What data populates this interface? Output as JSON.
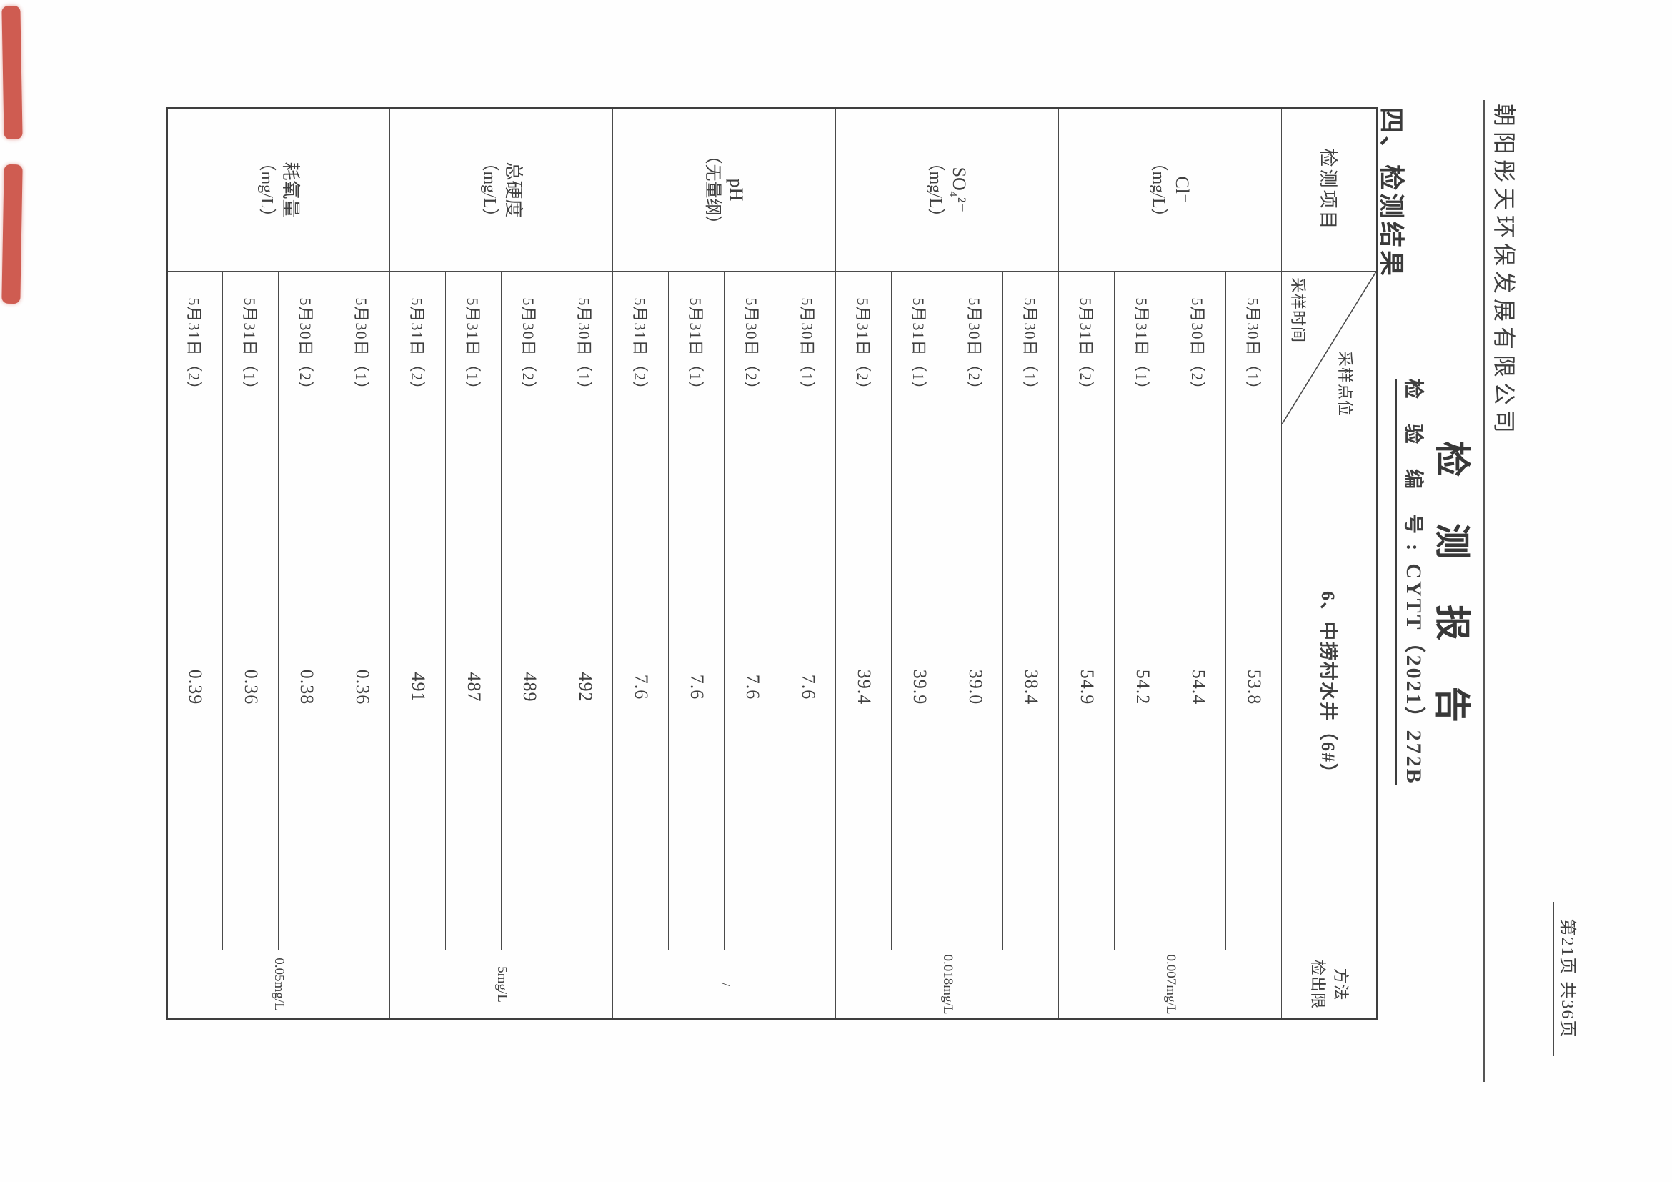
{
  "document": {
    "page_info": "第21页 共36页",
    "company_name": "朝阳彤天环保发展有限公司",
    "report_title": "检 测 报 告",
    "report_no_label": "检 验 编 号:",
    "report_no_value": "CYTT（2021）272B",
    "section_heading": "四、检测结果"
  },
  "table": {
    "header": {
      "item_col": "检测项目",
      "corner_top_right": "采样点位",
      "corner_bottom_left": "采样时间",
      "sampling_point": "6、中捞村水井（6#）",
      "limit_col_line1": "方法",
      "limit_col_line2": "检出限"
    },
    "sampling_times": [
      "5月30日（1）",
      "5月30日（2）",
      "5月31日（1）",
      "5月31日（2）"
    ],
    "items": [
      {
        "name": "Cl⁻",
        "unit": "（mg/L）",
        "values": [
          "53.8",
          "54.4",
          "54.2",
          "54.9"
        ],
        "detection_limit": "0.007mg/L"
      },
      {
        "name": "SO₄²⁻",
        "unit": "（mg/L）",
        "values": [
          "38.4",
          "39.0",
          "39.9",
          "39.4"
        ],
        "detection_limit": "0.018mg/L"
      },
      {
        "name": "pH",
        "unit": "（无量纲）",
        "values": [
          "7.6",
          "7.6",
          "7.6",
          "7.6"
        ],
        "detection_limit": "/"
      },
      {
        "name": "总硬度",
        "unit": "（mg/L）",
        "values": [
          "492",
          "489",
          "487",
          "491"
        ],
        "detection_limit": "5mg/L"
      },
      {
        "name": "耗氧量",
        "unit": "（mg/L）",
        "values": [
          "0.36",
          "0.38",
          "0.36",
          "0.39"
        ],
        "detection_limit": "0.05mg/L"
      }
    ]
  },
  "seal": {
    "color": "#c5392c"
  }
}
